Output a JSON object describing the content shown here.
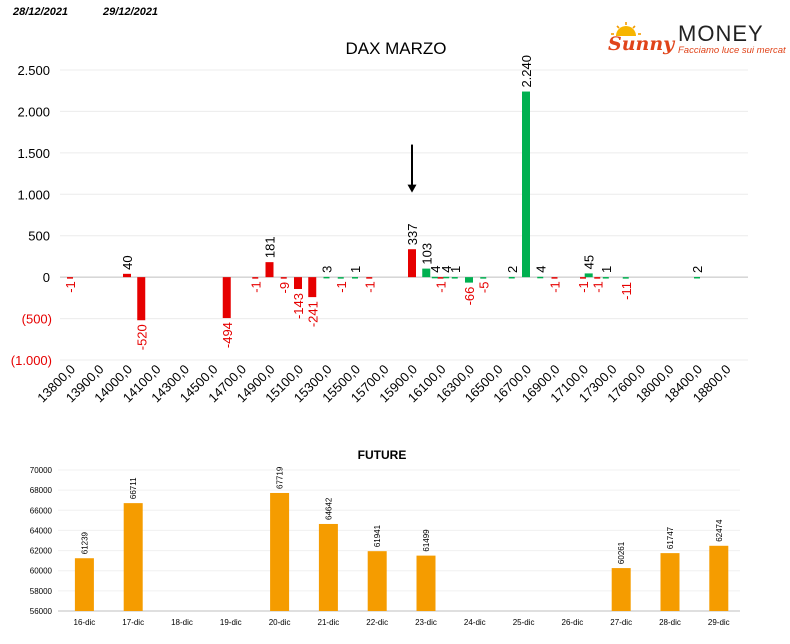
{
  "header": {
    "date_left": "28/12/2021",
    "date_right": "29/12/2021"
  },
  "logo": {
    "brand_script": "Sunny",
    "brand_main": "MONEY",
    "tagline": "Facciamo luce sui mercati"
  },
  "colors": {
    "negative": "#e60000",
    "positive": "#00b050",
    "future": "#f59c00",
    "axis": "#d9d9d9"
  },
  "chart_data": [
    {
      "type": "bar",
      "title": "DAX MARZO",
      "ylim": [
        -1000,
        2500
      ],
      "yticks": [
        {
          "v": 2500,
          "label": "2.500"
        },
        {
          "v": 2000,
          "label": "2.000"
        },
        {
          "v": 1500,
          "label": "1.500"
        },
        {
          "v": 1000,
          "label": "1.000"
        },
        {
          "v": 500,
          "label": "500"
        },
        {
          "v": 0,
          "label": "0"
        },
        {
          "v": -500,
          "label": "(500)"
        },
        {
          "v": -1000,
          "label": "(1.000)"
        }
      ],
      "xtick_labels": [
        "13800,0",
        "13900,0",
        "14000,0",
        "14100,0",
        "14300,0",
        "14500,0",
        "14700,0",
        "14900,0",
        "15100,0",
        "15300,0",
        "15500,0",
        "15700,0",
        "15900,0",
        "16100,0",
        "16300,0",
        "16500,0",
        "16700,0",
        "16900,0",
        "17100,0",
        "17300,0",
        "17600,0",
        "18000,0",
        "18400,0",
        "18800,0"
      ],
      "series": [
        {
          "color": "red",
          "values": [
            {
              "i": 0,
              "v": -1,
              "label": "-1"
            },
            {
              "i": 2,
              "v": 40,
              "label": "40"
            },
            {
              "i": 2.5,
              "v": -520,
              "label": "-520"
            },
            {
              "i": 5.5,
              "v": -494,
              "label": "-494"
            },
            {
              "i": 6.5,
              "v": -1,
              "label": "-1"
            },
            {
              "i": 7,
              "v": 181,
              "label": "181"
            },
            {
              "i": 7.5,
              "v": -9,
              "label": "-9"
            },
            {
              "i": 8,
              "v": -143,
              "label": "-143"
            },
            {
              "i": 8.5,
              "v": -241,
              "label": "-241"
            },
            {
              "i": 10.5,
              "v": -1,
              "label": "-1"
            },
            {
              "i": 12,
              "v": 337,
              "label": "337"
            },
            {
              "i": 13,
              "v": -1,
              "label": "-1"
            },
            {
              "i": 17,
              "v": -1,
              "label": "-1"
            },
            {
              "i": 18,
              "v": -1,
              "label": "-1"
            },
            {
              "i": 18.5,
              "v": -1,
              "label": "-1"
            }
          ]
        },
        {
          "color": "green",
          "values": [
            {
              "i": 9,
              "v": 3,
              "label": "3"
            },
            {
              "i": 9.5,
              "v": -1,
              "label": "-1"
            },
            {
              "i": 10,
              "v": 1,
              "label": "1"
            },
            {
              "i": 12.5,
              "v": 103,
              "label": "103"
            },
            {
              "i": 12.8,
              "v": 4,
              "label": "4"
            },
            {
              "i": 13.2,
              "v": 4,
              "label": "4"
            },
            {
              "i": 13.5,
              "v": 1,
              "label": "1"
            },
            {
              "i": 14,
              "v": -66,
              "label": "-66"
            },
            {
              "i": 14.5,
              "v": -5,
              "label": "-5"
            },
            {
              "i": 15.5,
              "v": 2,
              "label": "2"
            },
            {
              "i": 16,
              "v": 2240,
              "label": "2.240"
            },
            {
              "i": 16.5,
              "v": 4,
              "label": "4"
            },
            {
              "i": 18.2,
              "v": 45,
              "label": "45"
            },
            {
              "i": 18.8,
              "v": 1,
              "label": "1"
            },
            {
              "i": 19.5,
              "v": -11,
              "label": "-11"
            },
            {
              "i": 22,
              "v": 2,
              "label": "2"
            }
          ]
        }
      ],
      "arrow": {
        "i": 12,
        "from": 1600,
        "to": 1020
      }
    },
    {
      "type": "bar",
      "title": "FUTURE",
      "ylim": [
        56000,
        70000
      ],
      "yticks": [
        {
          "v": 70000,
          "label": "70000"
        },
        {
          "v": 68000,
          "label": "68000"
        },
        {
          "v": 66000,
          "label": "66000"
        },
        {
          "v": 64000,
          "label": "64000"
        },
        {
          "v": 62000,
          "label": "62000"
        },
        {
          "v": 60000,
          "label": "60000"
        },
        {
          "v": 58000,
          "label": "58000"
        },
        {
          "v": 56000,
          "label": "56000"
        }
      ],
      "categories": [
        "16-dic",
        "17-dic",
        "18-dic",
        "19-dic",
        "20-dic",
        "21-dic",
        "22-dic",
        "23-dic",
        "24-dic",
        "25-dic",
        "26-dic",
        "27-dic",
        "28-dic",
        "29-dic"
      ],
      "values": [
        61239,
        66711,
        null,
        null,
        67719,
        64642,
        61941,
        61499,
        null,
        null,
        null,
        60261,
        61747,
        62474
      ]
    }
  ]
}
